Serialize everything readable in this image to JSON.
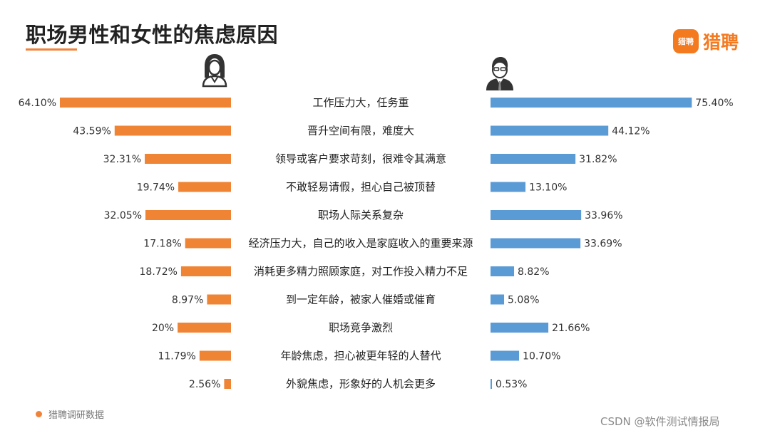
{
  "title": "职场男性和女性的焦虑原因",
  "logo": {
    "badge": "猎聘",
    "text": "猎聘"
  },
  "source": "猎聘调研数据",
  "watermark": "CSDN @软件测试情报局",
  "colors": {
    "female": "#ef8434",
    "male": "#5b9bd5",
    "accent": "#f47a20"
  },
  "icons": {
    "female": "female-user-icon",
    "male": "male-user-icon"
  },
  "chart_data": {
    "type": "bar",
    "orientation": "horizontal-butterfly",
    "categories": [
      "工作压力大，任务重",
      "晋升空间有限，难度大",
      "领导或客户要求苛刻，很难令其满意",
      "不敢轻易请假，担心自己被顶替",
      "职场人际关系复杂",
      "经济压力大，自己的收入是家庭收入的重要来源",
      "消耗更多精力照顾家庭，对工作投入精力不足",
      "到一定年龄，被家人催婚或催育",
      "职场竞争激烈",
      "年龄焦虑，担心被更年轻的人替代",
      "外貌焦虑，形象好的人机会更多"
    ],
    "series": [
      {
        "values": [
          64.1,
          43.59,
          32.31,
          19.74,
          32.05,
          17.18,
          18.72,
          8.97,
          20,
          11.79,
          2.56
        ],
        "labels": [
          "64.10%",
          "43.59%",
          "32.31%",
          "19.74%",
          "32.05%",
          "17.18%",
          "18.72%",
          "8.97%",
          "20%",
          "11.79%",
          "2.56%"
        ]
      },
      {
        "values": [
          75.4,
          44.12,
          31.82,
          13.1,
          33.96,
          33.69,
          8.82,
          5.08,
          21.66,
          10.7,
          0.53
        ],
        "labels": [
          "75.40%",
          "44.12%",
          "31.82%",
          "13.10%",
          "33.96%",
          "33.69%",
          "8.82%",
          "5.08%",
          "21.66%",
          "10.70%",
          "0.53%"
        ]
      }
    ],
    "unit": "%",
    "grid": false,
    "legend": "none"
  }
}
